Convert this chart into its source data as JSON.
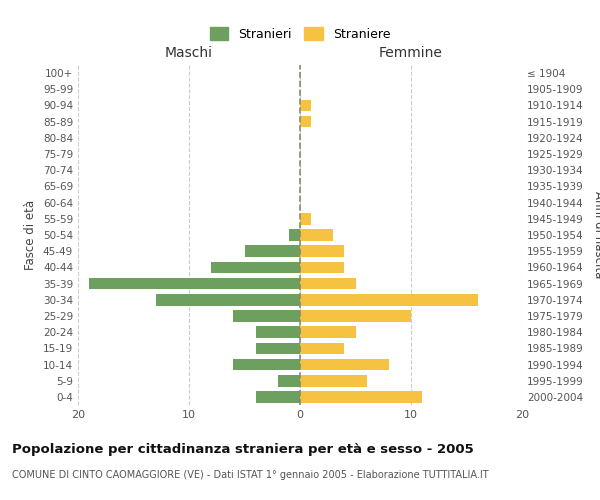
{
  "age_groups": [
    "0-4",
    "5-9",
    "10-14",
    "15-19",
    "20-24",
    "25-29",
    "30-34",
    "35-39",
    "40-44",
    "45-49",
    "50-54",
    "55-59",
    "60-64",
    "65-69",
    "70-74",
    "75-79",
    "80-84",
    "85-89",
    "90-94",
    "95-99",
    "100+"
  ],
  "birth_years": [
    "2000-2004",
    "1995-1999",
    "1990-1994",
    "1985-1989",
    "1980-1984",
    "1975-1979",
    "1970-1974",
    "1965-1969",
    "1960-1964",
    "1955-1959",
    "1950-1954",
    "1945-1949",
    "1940-1944",
    "1935-1939",
    "1930-1934",
    "1925-1929",
    "1920-1924",
    "1915-1919",
    "1910-1914",
    "1905-1909",
    "≤ 1904"
  ],
  "males": [
    4,
    2,
    6,
    4,
    4,
    6,
    13,
    19,
    8,
    5,
    1,
    0,
    0,
    0,
    0,
    0,
    0,
    0,
    0,
    0,
    0
  ],
  "females": [
    11,
    6,
    8,
    4,
    5,
    10,
    16,
    5,
    4,
    4,
    3,
    1,
    0,
    0,
    0,
    0,
    0,
    1,
    1,
    0,
    0
  ],
  "male_color": "#6d9f5e",
  "female_color": "#f5c242",
  "xlim": 20,
  "title": "Popolazione per cittadinanza straniera per età e sesso - 2005",
  "subtitle": "COMUNE DI CINTO CAOMAGGIORE (VE) - Dati ISTAT 1° gennaio 2005 - Elaborazione TUTTITALIA.IT",
  "legend_male": "Stranieri",
  "legend_female": "Straniere",
  "xlabel_left": "Maschi",
  "xlabel_right": "Femmine",
  "ylabel_left": "Fasce di età",
  "ylabel_right": "Anni di nascita",
  "bg_color": "#ffffff",
  "grid_color": "#cccccc",
  "center_line_color": "#8b8b6b"
}
